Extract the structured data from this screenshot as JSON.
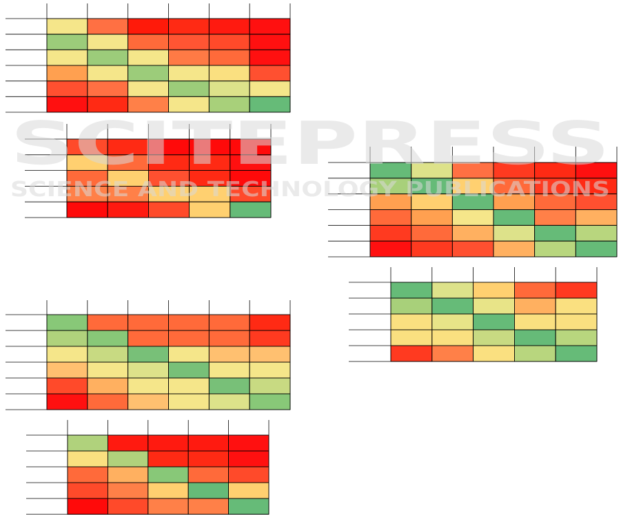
{
  "watermark": {
    "title": "SCITEPRESS",
    "subtitle": "SCIENCE AND TECHNOLOGY PUBLICATIONS"
  },
  "heatmaps": [
    {
      "rows": [
        [
          "#f5e68a",
          "#ff7043",
          "#ff1a0a",
          "#ff2a14",
          "#ff1a10",
          "#ff1010"
        ],
        [
          "#9ccc7a",
          "#f5e68a",
          "#ff6a3a",
          "#ff5533",
          "#ff4a2a",
          "#ff1010"
        ],
        [
          "#f5e68a",
          "#9ccc7a",
          "#f5e68a",
          "#ff7a45",
          "#ff6a3a",
          "#ff1010"
        ],
        [
          "#ffa050",
          "#f5e68a",
          "#9ccc7a",
          "#f5e68a",
          "#fae080",
          "#ff5030"
        ],
        [
          "#ff5030",
          "#ff7043",
          "#f5e68a",
          "#9ccc7a",
          "#dde28a",
          "#f5e68a"
        ],
        [
          "#ff1010",
          "#ff2a14",
          "#ff8048",
          "#f5e68a",
          "#a8d07a",
          "#66bb78"
        ]
      ]
    },
    {
      "rows": [
        [
          "#ff4a2a",
          "#ff2a14",
          "#ff0a0a",
          "#ff0a0a",
          "#ff0a0a"
        ],
        [
          "#ffd070",
          "#ff6a3a",
          "#ff2a14",
          "#ff2a14",
          "#ff1010"
        ],
        [
          "#ff6a3a",
          "#ffd070",
          "#ff5030",
          "#ff2a14",
          "#ff0a0a"
        ],
        [
          "#ff8048",
          "#ff8048",
          "#ffd070",
          "#ffd070",
          "#ff4a2a"
        ],
        [
          "#ff0a0a",
          "#ff1a10",
          "#ff4a2a",
          "#ffd070",
          "#66bb78"
        ]
      ]
    },
    {
      "rows": [
        [
          "#66bb78",
          "#dde28a",
          "#ff7043",
          "#ff3a20",
          "#ff2a14",
          "#ff1010"
        ],
        [
          "#a8d07a",
          "#66bb78",
          "#ffd070",
          "#ff6a3a",
          "#ff3a20",
          "#ff2a14"
        ],
        [
          "#ffa050",
          "#ffd070",
          "#66bb78",
          "#ffa050",
          "#ff6a3a",
          "#ff5030"
        ],
        [
          "#ff6a3a",
          "#ffa050",
          "#f5e68a",
          "#66bb78",
          "#ff8048",
          "#ffb060"
        ],
        [
          "#ff3a20",
          "#ff6a3a",
          "#ffb060",
          "#dde28a",
          "#66bb78",
          "#b8d67e"
        ],
        [
          "#ff1010",
          "#ff3a20",
          "#ff5030",
          "#ffb060",
          "#b8d67e",
          "#66bb78"
        ]
      ]
    },
    {
      "rows": [
        [
          "#66bb78",
          "#dde28a",
          "#ffd070",
          "#ff6a3a",
          "#ff3a20"
        ],
        [
          "#a8d07a",
          "#66bb78",
          "#e8e488",
          "#ffb060",
          "#fae080"
        ],
        [
          "#fae080",
          "#e8e488",
          "#66bb78",
          "#fae080",
          "#fae080"
        ],
        [
          "#fae080",
          "#fae080",
          "#c8da82",
          "#66bb78",
          "#b8d67e"
        ],
        [
          "#ff3a20",
          "#ff8048",
          "#fae080",
          "#b8d67e",
          "#66bb78"
        ]
      ]
    },
    {
      "rows": [
        [
          "#88c878",
          "#ff6a3a",
          "#ff6a3a",
          "#ff6a3a",
          "#ff6a3a",
          "#ff2a14"
        ],
        [
          "#b0d27c",
          "#88c878",
          "#ff6a3a",
          "#ff6a3a",
          "#ff6a3a",
          "#ff3a20"
        ],
        [
          "#f5e68a",
          "#c8da82",
          "#78c078",
          "#f5e68a",
          "#ffc070",
          "#ffc070"
        ],
        [
          "#ffc070",
          "#f5e68a",
          "#dde28a",
          "#78c078",
          "#f5e68a",
          "#f5e68a"
        ],
        [
          "#ff4a2a",
          "#ffb060",
          "#f5e68a",
          "#f5e68a",
          "#78c078",
          "#c8da82"
        ],
        [
          "#ff1010",
          "#ff6a3a",
          "#ffc070",
          "#f5e68a",
          "#dde28a",
          "#88c878"
        ]
      ]
    },
    {
      "rows": [
        [
          "#b0d27c",
          "#ff1a10",
          "#ff1a10",
          "#ff1a10",
          "#ff1010"
        ],
        [
          "#fae080",
          "#b0d27c",
          "#ff2a14",
          "#ff2a14",
          "#ff1010"
        ],
        [
          "#ff6a3a",
          "#ffb060",
          "#88c878",
          "#ff6a3a",
          "#ff4a2a"
        ],
        [
          "#ff4a2a",
          "#ff8048",
          "#ffd070",
          "#66bb78",
          "#ffd070"
        ],
        [
          "#ff0a0a",
          "#ff4a2a",
          "#ff8048",
          "#ff8048",
          "#66bb78"
        ]
      ]
    }
  ]
}
